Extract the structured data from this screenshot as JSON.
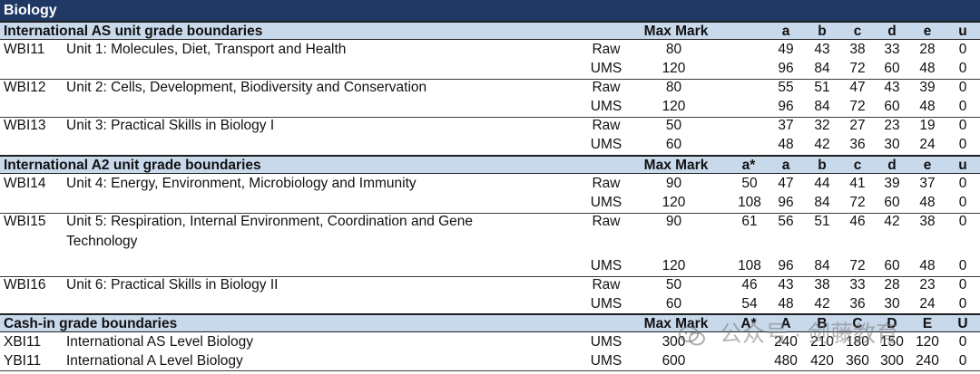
{
  "title": "Biology",
  "as_header": {
    "label": "International AS unit grade boundaries",
    "max_mark": "Max Mark",
    "grades": [
      "a",
      "b",
      "c",
      "d",
      "e",
      "u"
    ]
  },
  "as_units": [
    {
      "code": "WBI11",
      "title": "Unit 1: Molecules, Diet, Transport and Health",
      "raw": {
        "type": "Raw",
        "max": "80",
        "a": "49",
        "b": "43",
        "c": "38",
        "d": "33",
        "e": "28",
        "u": "0"
      },
      "ums": {
        "type": "UMS",
        "max": "120",
        "a": "96",
        "b": "84",
        "c": "72",
        "d": "60",
        "e": "48",
        "u": "0"
      }
    },
    {
      "code": "WBI12",
      "title": "Unit 2: Cells, Development, Biodiversity and Conservation",
      "raw": {
        "type": "Raw",
        "max": "80",
        "a": "55",
        "b": "51",
        "c": "47",
        "d": "43",
        "e": "39",
        "u": "0"
      },
      "ums": {
        "type": "UMS",
        "max": "120",
        "a": "96",
        "b": "84",
        "c": "72",
        "d": "60",
        "e": "48",
        "u": "0"
      }
    },
    {
      "code": "WBI13",
      "title": "Unit 3: Practical Skills in Biology I",
      "raw": {
        "type": "Raw",
        "max": "50",
        "a": "37",
        "b": "32",
        "c": "27",
        "d": "23",
        "e": "19",
        "u": "0"
      },
      "ums": {
        "type": "UMS",
        "max": "60",
        "a": "48",
        "b": "42",
        "c": "36",
        "d": "30",
        "e": "24",
        "u": "0"
      }
    }
  ],
  "a2_header": {
    "label": "International A2 unit grade boundaries",
    "max_mark": "Max Mark",
    "grades": [
      "a*",
      "a",
      "b",
      "c",
      "d",
      "e",
      "u"
    ]
  },
  "a2_units": [
    {
      "code": "WBI14",
      "title": "Unit 4: Energy, Environment, Microbiology and Immunity",
      "raw": {
        "type": "Raw",
        "max": "90",
        "astar": "50",
        "a": "47",
        "b": "44",
        "c": "41",
        "d": "39",
        "e": "37",
        "u": "0"
      },
      "ums": {
        "type": "UMS",
        "max": "120",
        "astar": "108",
        "a": "96",
        "b": "84",
        "c": "72",
        "d": "60",
        "e": "48",
        "u": "0"
      }
    },
    {
      "code": "WBI15",
      "title": "Unit 5: Respiration, Internal Environment, Coordination and Gene Technology",
      "raw": {
        "type": "Raw",
        "max": "90",
        "astar": "61",
        "a": "56",
        "b": "51",
        "c": "46",
        "d": "42",
        "e": "38",
        "u": "0"
      },
      "ums": {
        "type": "UMS",
        "max": "120",
        "astar": "108",
        "a": "96",
        "b": "84",
        "c": "72",
        "d": "60",
        "e": "48",
        "u": "0"
      }
    },
    {
      "code": "WBI16",
      "title": "Unit 6: Practical Skills in Biology II",
      "raw": {
        "type": "Raw",
        "max": "50",
        "astar": "46",
        "a": "43",
        "b": "38",
        "c": "33",
        "d": "28",
        "e": "23",
        "u": "0"
      },
      "ums": {
        "type": "UMS",
        "max": "60",
        "astar": "54",
        "a": "48",
        "b": "42",
        "c": "36",
        "d": "30",
        "e": "24",
        "u": "0"
      }
    }
  ],
  "cash_header": {
    "label": "Cash-in grade boundaries",
    "max_mark": "Max Mark",
    "grades": [
      "A*",
      "A",
      "B",
      "C",
      "D",
      "E",
      "U"
    ]
  },
  "cash_rows": [
    {
      "code": "XBI11",
      "title": "International AS Level Biology",
      "type": "UMS",
      "max": "300",
      "astar": "",
      "A": "240",
      "B": "210",
      "C": "180",
      "D": "150",
      "E": "120",
      "U": "0"
    },
    {
      "code": "YBI11",
      "title": "International A Level Biology",
      "type": "UMS",
      "max": "600",
      "astar": "",
      "A": "480",
      "B": "420",
      "C": "360",
      "D": "300",
      "E": "240",
      "U": "0"
    }
  ],
  "watermark": {
    "text": "公众号 · 剑藤教育",
    "icon": "wechat-icon"
  }
}
